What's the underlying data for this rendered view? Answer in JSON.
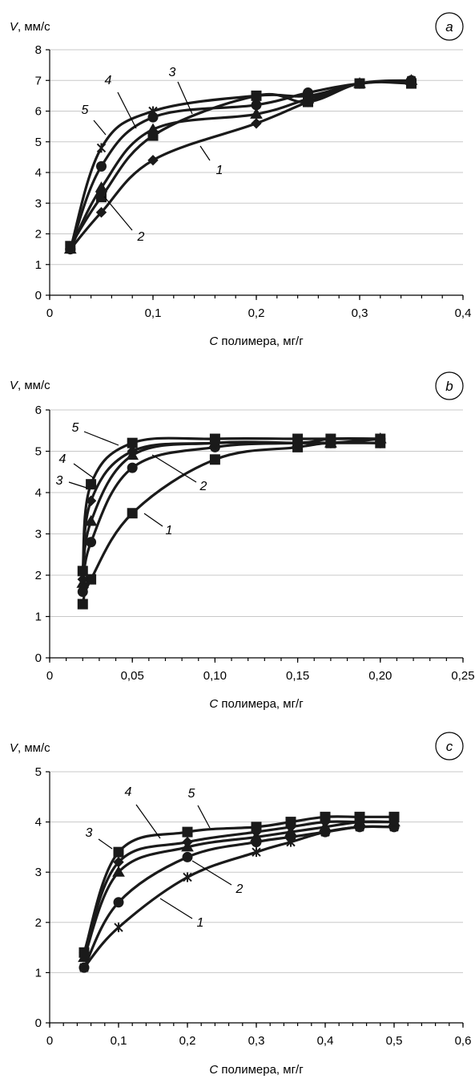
{
  "chart_data": [
    {
      "type": "line",
      "panel_label": "a",
      "ylabel": "V, мм/с",
      "xlabel": "C полимера, мг/г",
      "xlim": [
        0,
        0.4
      ],
      "ylim": [
        0,
        8
      ],
      "x_tick_labels": [
        "0",
        "0,1",
        "0,2",
        "0,3",
        "0,4"
      ],
      "y_tick_labels": [
        "0",
        "1",
        "2",
        "3",
        "4",
        "5",
        "6",
        "7",
        "8"
      ],
      "grid": "horizontal",
      "series": [
        {
          "label": "1",
          "marker": "diamond",
          "x": [
            0.02,
            0.05,
            0.1,
            0.2,
            0.25,
            0.3,
            0.35
          ],
          "y": [
            1.5,
            2.7,
            4.4,
            5.6,
            6.3,
            6.9,
            7.0
          ]
        },
        {
          "label": "2",
          "marker": "triangle",
          "x": [
            0.02,
            0.05,
            0.1,
            0.2,
            0.25,
            0.3,
            0.35
          ],
          "y": [
            1.5,
            3.5,
            5.4,
            5.9,
            6.4,
            6.9,
            7.0
          ]
        },
        {
          "label": "3",
          "marker": "circle",
          "x": [
            0.02,
            0.05,
            0.1,
            0.2,
            0.25,
            0.3,
            0.35
          ],
          "y": [
            1.5,
            4.2,
            5.8,
            6.2,
            6.6,
            6.9,
            7.0
          ]
        },
        {
          "label": "4",
          "marker": "cross",
          "x": [
            0.02,
            0.05,
            0.1,
            0.2,
            0.25,
            0.3,
            0.35
          ],
          "y": [
            1.5,
            4.8,
            6.0,
            6.5,
            6.5,
            6.9,
            7.0
          ]
        },
        {
          "label": "5",
          "marker": "square",
          "x": [
            0.02,
            0.05,
            0.1,
            0.2,
            0.25,
            0.3,
            0.35
          ],
          "y": [
            1.6,
            3.2,
            5.2,
            6.5,
            6.3,
            6.9,
            6.9
          ]
        }
      ]
    },
    {
      "type": "line",
      "panel_label": "b",
      "ylabel": "V, мм/с",
      "xlabel": "C полимера, мг/г",
      "xlim": [
        0,
        0.25
      ],
      "ylim": [
        0,
        6
      ],
      "x_tick_labels": [
        "0",
        "0,05",
        "0,10",
        "0,15",
        "0,20",
        "0,25"
      ],
      "y_tick_labels": [
        "0",
        "1",
        "2",
        "3",
        "4",
        "5",
        "6"
      ],
      "grid": "horizontal",
      "series": [
        {
          "label": "1",
          "marker": "square",
          "x": [
            0.02,
            0.025,
            0.05,
            0.1,
            0.15,
            0.17,
            0.2
          ],
          "y": [
            1.3,
            1.9,
            3.5,
            4.8,
            5.1,
            5.2,
            5.2
          ]
        },
        {
          "label": "2",
          "marker": "circle",
          "x": [
            0.02,
            0.025,
            0.05,
            0.1,
            0.15,
            0.17,
            0.2
          ],
          "y": [
            1.6,
            2.8,
            4.6,
            5.1,
            5.2,
            5.2,
            5.2
          ]
        },
        {
          "label": "3",
          "marker": "triangle",
          "x": [
            0.02,
            0.025,
            0.05,
            0.1,
            0.15,
            0.17,
            0.2
          ],
          "y": [
            1.8,
            3.3,
            4.9,
            5.2,
            5.2,
            5.2,
            5.3
          ]
        },
        {
          "label": "4",
          "marker": "diamond",
          "x": [
            0.02,
            0.025,
            0.05,
            0.1,
            0.15,
            0.17,
            0.2
          ],
          "y": [
            1.9,
            3.8,
            5.0,
            5.2,
            5.2,
            5.3,
            5.3
          ]
        },
        {
          "label": "5",
          "marker": "square",
          "x": [
            0.02,
            0.025,
            0.05,
            0.1,
            0.15,
            0.17,
            0.2
          ],
          "y": [
            2.1,
            4.2,
            5.2,
            5.3,
            5.3,
            5.3,
            5.3
          ]
        }
      ]
    },
    {
      "type": "line",
      "panel_label": "c",
      "ylabel": "V, мм/с",
      "xlabel": "C полимера, мг/г",
      "xlim": [
        0,
        0.6
      ],
      "ylim": [
        0,
        5
      ],
      "x_tick_labels": [
        "0",
        "0,1",
        "0,2",
        "0,3",
        "0,4",
        "0,5",
        "0,6"
      ],
      "y_tick_labels": [
        "0",
        "1",
        "2",
        "3",
        "4",
        "5"
      ],
      "grid": "horizontal",
      "series": [
        {
          "label": "1",
          "marker": "cross",
          "x": [
            0.05,
            0.1,
            0.2,
            0.3,
            0.35,
            0.4,
            0.45,
            0.5
          ],
          "y": [
            1.1,
            1.9,
            2.9,
            3.4,
            3.6,
            3.8,
            3.9,
            3.9
          ]
        },
        {
          "label": "2",
          "marker": "circle",
          "x": [
            0.05,
            0.1,
            0.2,
            0.3,
            0.35,
            0.4,
            0.45,
            0.5
          ],
          "y": [
            1.1,
            2.4,
            3.3,
            3.6,
            3.7,
            3.8,
            3.9,
            3.9
          ]
        },
        {
          "label": "3",
          "marker": "triangle",
          "x": [
            0.05,
            0.1,
            0.2,
            0.3,
            0.35,
            0.4,
            0.45,
            0.5
          ],
          "y": [
            1.3,
            3.0,
            3.5,
            3.7,
            3.8,
            3.9,
            4.0,
            4.0
          ]
        },
        {
          "label": "4",
          "marker": "diamond",
          "x": [
            0.05,
            0.1,
            0.2,
            0.3,
            0.35,
            0.4,
            0.45,
            0.5
          ],
          "y": [
            1.4,
            3.2,
            3.6,
            3.8,
            3.9,
            4.0,
            4.0,
            4.0
          ]
        },
        {
          "label": "5",
          "marker": "square",
          "x": [
            0.05,
            0.1,
            0.2,
            0.3,
            0.35,
            0.4,
            0.45,
            0.5
          ],
          "y": [
            1.4,
            3.4,
            3.8,
            3.9,
            4.0,
            4.1,
            4.1,
            4.1
          ]
        }
      ]
    }
  ]
}
